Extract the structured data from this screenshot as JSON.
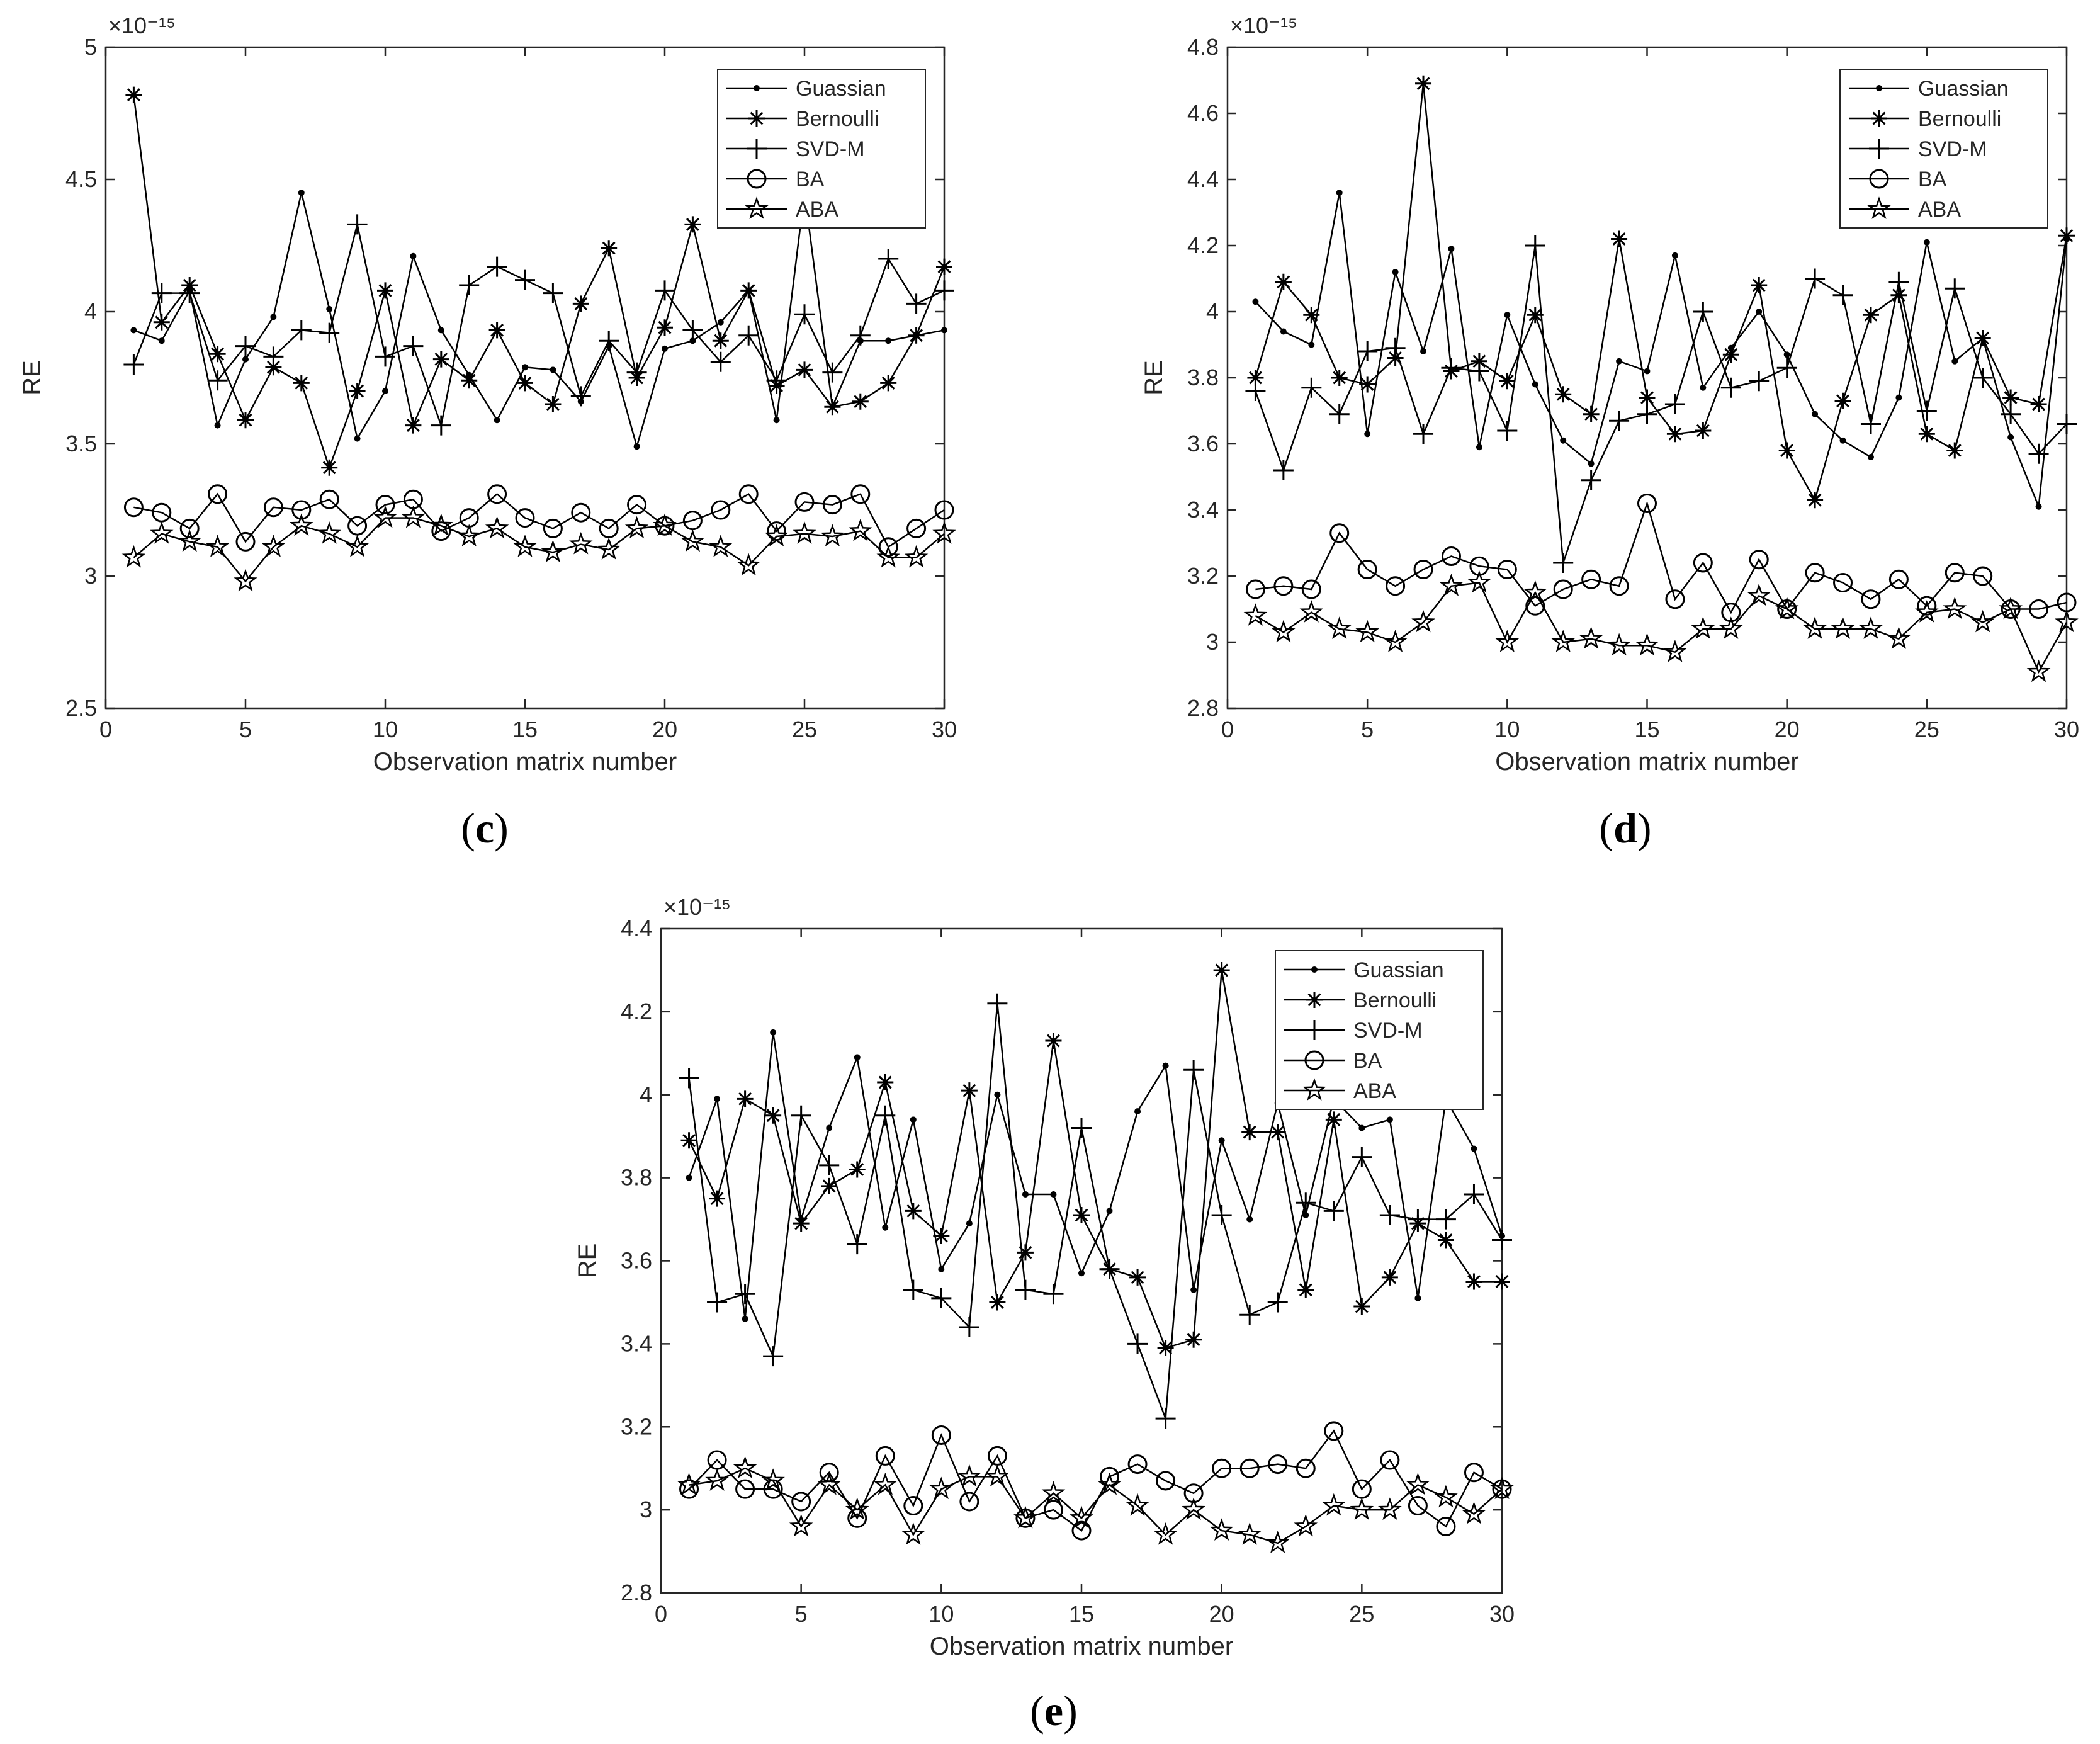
{
  "chart_data": [
    {
      "type": "line",
      "panel_label": "(c)",
      "xlabel": "Observation matrix number",
      "ylabel": "RE",
      "y_exponent": "×10⁻¹⁵",
      "xlim": [
        0,
        30
      ],
      "ylim": [
        2.5,
        5
      ],
      "x_ticks": [
        "0",
        "5",
        "10",
        "15",
        "20",
        "25",
        "30"
      ],
      "y_ticks": [
        "2.5",
        "3",
        "3.5",
        "4",
        "4.5",
        "5"
      ],
      "legend_position": "top-right",
      "x": [
        1,
        2,
        3,
        4,
        5,
        6,
        7,
        8,
        9,
        10,
        11,
        12,
        13,
        14,
        15,
        16,
        17,
        18,
        19,
        20,
        21,
        22,
        23,
        24,
        25,
        26,
        27,
        28,
        29,
        30
      ],
      "series": [
        {
          "name": "Guassian",
          "marker": "dot",
          "values": [
            3.93,
            3.89,
            4.08,
            3.57,
            3.82,
            3.98,
            4.45,
            4.01,
            3.52,
            3.7,
            4.21,
            3.93,
            3.76,
            3.59,
            3.79,
            3.78,
            3.66,
            3.87,
            3.49,
            3.86,
            3.89,
            3.96,
            4.08,
            3.59,
            4.45,
            3.64,
            3.89,
            3.89,
            3.91,
            3.93
          ]
        },
        {
          "name": "Bernoulli",
          "marker": "asterisk",
          "values": [
            4.82,
            3.96,
            4.1,
            3.84,
            3.59,
            3.79,
            3.73,
            3.41,
            3.7,
            4.08,
            3.57,
            3.82,
            3.74,
            3.93,
            3.73,
            3.65,
            4.03,
            4.24,
            3.75,
            3.94,
            4.33,
            3.89,
            4.08,
            3.72,
            3.78,
            3.64,
            3.66,
            3.73,
            3.91,
            4.17
          ]
        },
        {
          "name": "SVD-M",
          "marker": "plus",
          "values": [
            3.8,
            4.07,
            4.07,
            3.74,
            3.87,
            3.83,
            3.93,
            3.92,
            4.33,
            3.83,
            3.87,
            3.57,
            4.1,
            4.17,
            4.12,
            4.07,
            3.68,
            3.89,
            3.77,
            4.08,
            3.93,
            3.81,
            3.91,
            3.74,
            3.99,
            3.77,
            3.91,
            4.2,
            4.03,
            4.08
          ]
        },
        {
          "name": "BA",
          "marker": "circle",
          "values": [
            3.26,
            3.24,
            3.18,
            3.31,
            3.13,
            3.26,
            3.25,
            3.29,
            3.19,
            3.27,
            3.29,
            3.17,
            3.22,
            3.31,
            3.22,
            3.18,
            3.24,
            3.18,
            3.27,
            3.19,
            3.21,
            3.25,
            3.31,
            3.17,
            3.28,
            3.27,
            3.31,
            3.11,
            3.18,
            3.25
          ]
        },
        {
          "name": "ABA",
          "marker": "star",
          "values": [
            3.07,
            3.16,
            3.13,
            3.11,
            2.98,
            3.11,
            3.19,
            3.16,
            3.11,
            3.22,
            3.22,
            3.19,
            3.15,
            3.18,
            3.11,
            3.09,
            3.12,
            3.1,
            3.18,
            3.19,
            3.13,
            3.11,
            3.04,
            3.15,
            3.16,
            3.15,
            3.17,
            3.07,
            3.07,
            3.16
          ]
        }
      ]
    },
    {
      "type": "line",
      "panel_label": "(d)",
      "xlabel": "Observation matrix number",
      "ylabel": "RE",
      "y_exponent": "×10⁻¹⁵",
      "xlim": [
        0,
        30
      ],
      "ylim": [
        2.8,
        4.8
      ],
      "x_ticks": [
        "0",
        "5",
        "10",
        "15",
        "20",
        "25",
        "30"
      ],
      "y_ticks": [
        "2.8",
        "3",
        "3.2",
        "3.4",
        "3.6",
        "3.8",
        "4",
        "4.2",
        "4.4",
        "4.6",
        "4.8"
      ],
      "legend_position": "top-right",
      "x": [
        1,
        2,
        3,
        4,
        5,
        6,
        7,
        8,
        9,
        10,
        11,
        12,
        13,
        14,
        15,
        16,
        17,
        18,
        19,
        20,
        21,
        22,
        23,
        24,
        25,
        26,
        27,
        28,
        29,
        30
      ],
      "series": [
        {
          "name": "Guassian",
          "marker": "dot",
          "values": [
            4.03,
            3.94,
            3.9,
            4.36,
            3.63,
            4.12,
            3.88,
            4.19,
            3.59,
            3.99,
            3.78,
            3.61,
            3.54,
            3.85,
            3.82,
            4.17,
            3.77,
            3.89,
            4.0,
            3.87,
            3.69,
            3.61,
            3.56,
            3.74,
            4.21,
            3.85,
            3.92,
            3.62,
            3.41,
            4.22
          ]
        },
        {
          "name": "Bernoulli",
          "marker": "asterisk",
          "values": [
            3.8,
            4.09,
            3.99,
            3.8,
            3.78,
            3.86,
            4.69,
            3.82,
            3.85,
            3.79,
            3.99,
            3.75,
            3.69,
            4.22,
            3.74,
            3.63,
            3.64,
            3.87,
            4.08,
            3.58,
            3.43,
            3.73,
            3.99,
            4.05,
            3.63,
            3.58,
            3.92,
            3.74,
            3.72,
            4.23
          ]
        },
        {
          "name": "SVD-M",
          "marker": "plus",
          "values": [
            3.76,
            3.52,
            3.77,
            3.69,
            3.88,
            3.89,
            3.63,
            3.83,
            3.82,
            3.64,
            4.2,
            3.24,
            3.49,
            3.67,
            3.69,
            3.72,
            4.0,
            3.77,
            3.79,
            3.83,
            4.1,
            4.05,
            3.66,
            4.09,
            3.7,
            4.07,
            3.8,
            3.69,
            3.57,
            3.66
          ]
        },
        {
          "name": "BA",
          "marker": "circle",
          "values": [
            3.16,
            3.17,
            3.16,
            3.33,
            3.22,
            3.17,
            3.22,
            3.26,
            3.23,
            3.22,
            3.11,
            3.16,
            3.19,
            3.17,
            3.42,
            3.13,
            3.24,
            3.09,
            3.25,
            3.1,
            3.21,
            3.18,
            3.13,
            3.19,
            3.11,
            3.21,
            3.2,
            3.1,
            3.1,
            3.12
          ]
        },
        {
          "name": "ABA",
          "marker": "star",
          "values": [
            3.08,
            3.03,
            3.09,
            3.04,
            3.03,
            3.0,
            3.06,
            3.17,
            3.18,
            3.0,
            3.15,
            3.0,
            3.01,
            2.99,
            2.99,
            2.97,
            3.04,
            3.04,
            3.14,
            3.1,
            3.04,
            3.04,
            3.04,
            3.01,
            3.09,
            3.1,
            3.06,
            3.1,
            2.91,
            3.06
          ]
        }
      ]
    },
    {
      "type": "line",
      "panel_label": "(e)",
      "xlabel": "Observation matrix number",
      "ylabel": "RE",
      "y_exponent": "×10⁻¹⁵",
      "xlim": [
        0,
        30
      ],
      "ylim": [
        2.8,
        4.4
      ],
      "x_ticks": [
        "0",
        "5",
        "10",
        "15",
        "20",
        "25",
        "30"
      ],
      "y_ticks": [
        "2.8",
        "3",
        "3.2",
        "3.4",
        "3.6",
        "3.8",
        "4",
        "4.2",
        "4.4"
      ],
      "legend_position": "top-right",
      "x": [
        1,
        2,
        3,
        4,
        5,
        6,
        7,
        8,
        9,
        10,
        11,
        12,
        13,
        14,
        15,
        16,
        17,
        18,
        19,
        20,
        21,
        22,
        23,
        24,
        25,
        26,
        27,
        28,
        29,
        30
      ],
      "series": [
        {
          "name": "Guassian",
          "marker": "dot",
          "values": [
            3.8,
            3.99,
            3.46,
            4.15,
            3.7,
            3.92,
            4.09,
            3.68,
            3.94,
            3.58,
            3.69,
            4.0,
            3.76,
            3.76,
            3.57,
            3.72,
            3.96,
            4.07,
            3.53,
            3.89,
            3.7,
            3.98,
            3.71,
            3.99,
            3.92,
            3.94,
            3.51,
            3.99,
            3.87,
            3.66
          ]
        },
        {
          "name": "Bernoulli",
          "marker": "asterisk",
          "values": [
            3.89,
            3.75,
            3.99,
            3.95,
            3.69,
            3.78,
            3.82,
            4.03,
            3.72,
            3.66,
            4.01,
            3.5,
            3.62,
            4.13,
            3.71,
            3.58,
            3.56,
            3.39,
            3.41,
            4.3,
            3.91,
            3.91,
            3.53,
            3.94,
            3.49,
            3.56,
            3.69,
            3.65,
            3.55,
            3.55
          ]
        },
        {
          "name": "SVD-M",
          "marker": "plus",
          "values": [
            4.04,
            3.5,
            3.52,
            3.37,
            3.95,
            3.83,
            3.64,
            3.95,
            3.53,
            3.51,
            3.44,
            4.22,
            3.53,
            3.52,
            3.92,
            3.58,
            3.4,
            3.22,
            4.06,
            3.71,
            3.47,
            3.5,
            3.74,
            3.72,
            3.85,
            3.71,
            3.7,
            3.7,
            3.76,
            3.65
          ]
        },
        {
          "name": "BA",
          "marker": "circle",
          "values": [
            3.05,
            3.12,
            3.05,
            3.05,
            3.02,
            3.09,
            2.98,
            3.13,
            3.01,
            3.18,
            3.02,
            3.13,
            2.98,
            3.0,
            2.95,
            3.08,
            3.11,
            3.07,
            3.04,
            3.1,
            3.1,
            3.11,
            3.1,
            3.19,
            3.05,
            3.12,
            3.01,
            2.96,
            3.09,
            3.05
          ]
        },
        {
          "name": "ABA",
          "marker": "star",
          "values": [
            3.06,
            3.07,
            3.1,
            3.07,
            2.96,
            3.06,
            3.0,
            3.06,
            2.94,
            3.05,
            3.08,
            3.08,
            2.98,
            3.04,
            2.98,
            3.06,
            3.01,
            2.94,
            3.0,
            2.95,
            2.94,
            2.92,
            2.96,
            3.01,
            3.0,
            3.0,
            3.06,
            3.03,
            2.99,
            3.05
          ]
        }
      ]
    }
  ]
}
